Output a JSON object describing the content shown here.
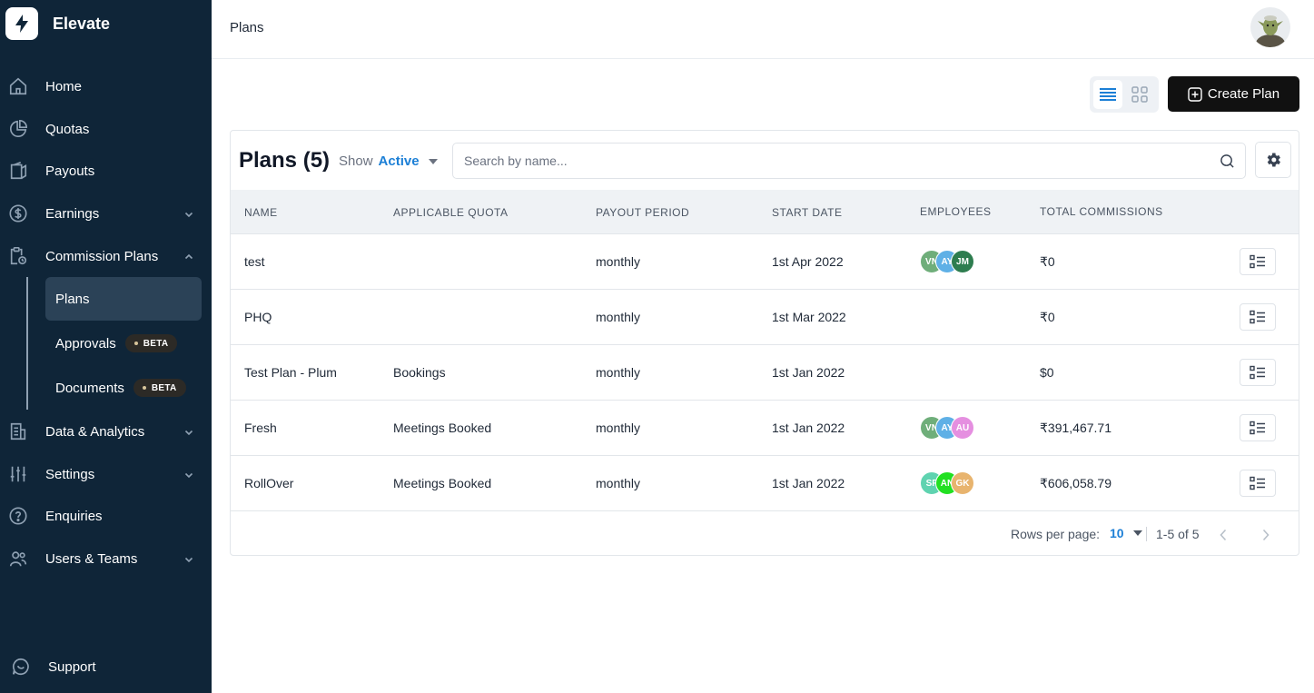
{
  "app": {
    "name": "Elevate"
  },
  "sidebar": {
    "items": [
      {
        "label": "Home"
      },
      {
        "label": "Quotas"
      },
      {
        "label": "Payouts"
      },
      {
        "label": "Earnings"
      },
      {
        "label": "Commission Plans"
      },
      {
        "label": "Data & Analytics"
      },
      {
        "label": "Settings"
      },
      {
        "label": "Enquiries"
      },
      {
        "label": "Users & Teams"
      }
    ],
    "sub_items": [
      {
        "label": "Plans",
        "active": true
      },
      {
        "label": "Approvals",
        "badge": "BETA"
      },
      {
        "label": "Documents",
        "badge": "BETA"
      }
    ],
    "support_label": "Support"
  },
  "header": {
    "title": "Plans"
  },
  "toolbar": {
    "create_label": "Create Plan"
  },
  "card": {
    "title": "Plans (5)",
    "show_label": "Show",
    "show_value": "Active",
    "search_placeholder": "Search by name..."
  },
  "table": {
    "columns": [
      "NAME",
      "APPLICABLE QUOTA",
      "PAYOUT PERIOD",
      "START DATE",
      "EMPLOYEES",
      "TOTAL COMMISSIONS"
    ],
    "rows": [
      {
        "name": "test",
        "quota": "",
        "period": "monthly",
        "start": "1st Apr 2022",
        "employees": [
          {
            "initials": "VN",
            "color": "#6fae7a"
          },
          {
            "initials": "AY",
            "color": "#5fb0e6"
          },
          {
            "initials": "JM",
            "color": "#2e7d4f"
          }
        ],
        "total": "₹0"
      },
      {
        "name": "PHQ",
        "quota": "",
        "period": "monthly",
        "start": "1st Mar 2022",
        "employees": [],
        "total": "₹0"
      },
      {
        "name": "Test Plan - Plum",
        "quota": "Bookings",
        "period": "monthly",
        "start": "1st Jan 2022",
        "employees": [],
        "total": "$0"
      },
      {
        "name": "Fresh",
        "quota": "Meetings Booked",
        "period": "monthly",
        "start": "1st Jan 2022",
        "employees": [
          {
            "initials": "VN",
            "color": "#6fae7a"
          },
          {
            "initials": "AY",
            "color": "#5fb0e6"
          },
          {
            "initials": "AU",
            "color": "#e58fe0"
          }
        ],
        "total": "₹391,467.71"
      },
      {
        "name": "RollOver",
        "quota": "Meetings Booked",
        "period": "monthly",
        "start": "1st Jan 2022",
        "employees": [
          {
            "initials": "SF",
            "color": "#5fd3b0"
          },
          {
            "initials": "AN",
            "color": "#22e022"
          },
          {
            "initials": "GK",
            "color": "#e8b46e"
          }
        ],
        "total": "₹606,058.79"
      }
    ]
  },
  "pager": {
    "rows_per_page_label": "Rows per page:",
    "rows_per_page": "10",
    "range": "1-5 of 5"
  },
  "colors": {
    "sidebar_bg": "#0f2538",
    "accent": "#1c7fd6",
    "primary_button": "#111111"
  }
}
